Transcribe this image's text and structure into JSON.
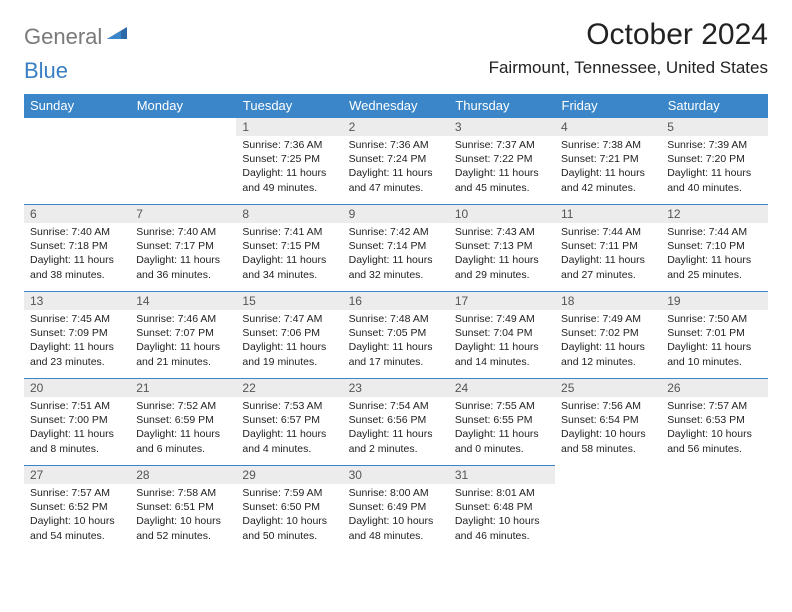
{
  "logo": {
    "general": "General",
    "blue": "Blue"
  },
  "title": "October 2024",
  "location": "Fairmount, Tennessee, United States",
  "colors": {
    "header_bg": "#3a86c8",
    "header_fg": "#ffffff",
    "daynum_bg": "#ececec",
    "grid_line": "#3a86c8",
    "logo_general": "#7a7a7a",
    "logo_blue": "#3a7fc4",
    "text": "#222222"
  },
  "dayHeaders": [
    "Sunday",
    "Monday",
    "Tuesday",
    "Wednesday",
    "Thursday",
    "Friday",
    "Saturday"
  ],
  "weeks": [
    [
      null,
      null,
      {
        "n": "1",
        "sr": "7:36 AM",
        "ss": "7:25 PM",
        "dl": "11 hours and 49 minutes."
      },
      {
        "n": "2",
        "sr": "7:36 AM",
        "ss": "7:24 PM",
        "dl": "11 hours and 47 minutes."
      },
      {
        "n": "3",
        "sr": "7:37 AM",
        "ss": "7:22 PM",
        "dl": "11 hours and 45 minutes."
      },
      {
        "n": "4",
        "sr": "7:38 AM",
        "ss": "7:21 PM",
        "dl": "11 hours and 42 minutes."
      },
      {
        "n": "5",
        "sr": "7:39 AM",
        "ss": "7:20 PM",
        "dl": "11 hours and 40 minutes."
      }
    ],
    [
      {
        "n": "6",
        "sr": "7:40 AM",
        "ss": "7:18 PM",
        "dl": "11 hours and 38 minutes."
      },
      {
        "n": "7",
        "sr": "7:40 AM",
        "ss": "7:17 PM",
        "dl": "11 hours and 36 minutes."
      },
      {
        "n": "8",
        "sr": "7:41 AM",
        "ss": "7:15 PM",
        "dl": "11 hours and 34 minutes."
      },
      {
        "n": "9",
        "sr": "7:42 AM",
        "ss": "7:14 PM",
        "dl": "11 hours and 32 minutes."
      },
      {
        "n": "10",
        "sr": "7:43 AM",
        "ss": "7:13 PM",
        "dl": "11 hours and 29 minutes."
      },
      {
        "n": "11",
        "sr": "7:44 AM",
        "ss": "7:11 PM",
        "dl": "11 hours and 27 minutes."
      },
      {
        "n": "12",
        "sr": "7:44 AM",
        "ss": "7:10 PM",
        "dl": "11 hours and 25 minutes."
      }
    ],
    [
      {
        "n": "13",
        "sr": "7:45 AM",
        "ss": "7:09 PM",
        "dl": "11 hours and 23 minutes."
      },
      {
        "n": "14",
        "sr": "7:46 AM",
        "ss": "7:07 PM",
        "dl": "11 hours and 21 minutes."
      },
      {
        "n": "15",
        "sr": "7:47 AM",
        "ss": "7:06 PM",
        "dl": "11 hours and 19 minutes."
      },
      {
        "n": "16",
        "sr": "7:48 AM",
        "ss": "7:05 PM",
        "dl": "11 hours and 17 minutes."
      },
      {
        "n": "17",
        "sr": "7:49 AM",
        "ss": "7:04 PM",
        "dl": "11 hours and 14 minutes."
      },
      {
        "n": "18",
        "sr": "7:49 AM",
        "ss": "7:02 PM",
        "dl": "11 hours and 12 minutes."
      },
      {
        "n": "19",
        "sr": "7:50 AM",
        "ss": "7:01 PM",
        "dl": "11 hours and 10 minutes."
      }
    ],
    [
      {
        "n": "20",
        "sr": "7:51 AM",
        "ss": "7:00 PM",
        "dl": "11 hours and 8 minutes."
      },
      {
        "n": "21",
        "sr": "7:52 AM",
        "ss": "6:59 PM",
        "dl": "11 hours and 6 minutes."
      },
      {
        "n": "22",
        "sr": "7:53 AM",
        "ss": "6:57 PM",
        "dl": "11 hours and 4 minutes."
      },
      {
        "n": "23",
        "sr": "7:54 AM",
        "ss": "6:56 PM",
        "dl": "11 hours and 2 minutes."
      },
      {
        "n": "24",
        "sr": "7:55 AM",
        "ss": "6:55 PM",
        "dl": "11 hours and 0 minutes."
      },
      {
        "n": "25",
        "sr": "7:56 AM",
        "ss": "6:54 PM",
        "dl": "10 hours and 58 minutes."
      },
      {
        "n": "26",
        "sr": "7:57 AM",
        "ss": "6:53 PM",
        "dl": "10 hours and 56 minutes."
      }
    ],
    [
      {
        "n": "27",
        "sr": "7:57 AM",
        "ss": "6:52 PM",
        "dl": "10 hours and 54 minutes."
      },
      {
        "n": "28",
        "sr": "7:58 AM",
        "ss": "6:51 PM",
        "dl": "10 hours and 52 minutes."
      },
      {
        "n": "29",
        "sr": "7:59 AM",
        "ss": "6:50 PM",
        "dl": "10 hours and 50 minutes."
      },
      {
        "n": "30",
        "sr": "8:00 AM",
        "ss": "6:49 PM",
        "dl": "10 hours and 48 minutes."
      },
      {
        "n": "31",
        "sr": "8:01 AM",
        "ss": "6:48 PM",
        "dl": "10 hours and 46 minutes."
      },
      null,
      null
    ]
  ],
  "labels": {
    "sunrise": "Sunrise: ",
    "sunset": "Sunset: ",
    "daylight": "Daylight: "
  }
}
